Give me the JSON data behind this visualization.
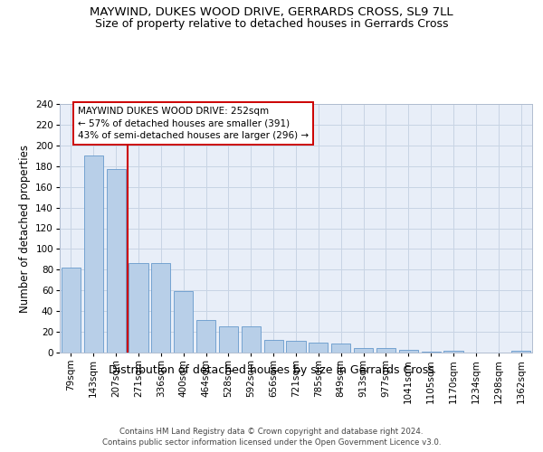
{
  "title": "MAYWIND, DUKES WOOD DRIVE, GERRARDS CROSS, SL9 7LL",
  "subtitle": "Size of property relative to detached houses in Gerrards Cross",
  "xlabel": "Distribution of detached houses by size in Gerrards Cross",
  "ylabel": "Number of detached properties",
  "categories": [
    "79sqm",
    "143sqm",
    "207sqm",
    "271sqm",
    "336sqm",
    "400sqm",
    "464sqm",
    "528sqm",
    "592sqm",
    "656sqm",
    "721sqm",
    "785sqm",
    "849sqm",
    "913sqm",
    "977sqm",
    "1041sqm",
    "1105sqm",
    "1170sqm",
    "1234sqm",
    "1298sqm",
    "1362sqm"
  ],
  "values": [
    82,
    190,
    177,
    86,
    86,
    59,
    31,
    25,
    25,
    12,
    11,
    10,
    9,
    4,
    4,
    3,
    1,
    2,
    0,
    0,
    2
  ],
  "bar_color": "#b8cfe8",
  "bar_edge_color": "#6699cc",
  "vline_x": 2.5,
  "vline_color": "#cc0000",
  "annotation_line1": "MAYWIND DUKES WOOD DRIVE: 252sqm",
  "annotation_line2": "← 57% of detached houses are smaller (391)",
  "annotation_line3": "43% of semi-detached houses are larger (296) →",
  "annotation_box_facecolor": "#ffffff",
  "annotation_box_edgecolor": "#cc0000",
  "ylim": [
    0,
    240
  ],
  "yticks": [
    0,
    20,
    40,
    60,
    80,
    100,
    120,
    140,
    160,
    180,
    200,
    220,
    240
  ],
  "grid_color": "#c8d4e4",
  "bg_color": "#e8eef8",
  "footer": "Contains HM Land Registry data © Crown copyright and database right 2024.\nContains public sector information licensed under the Open Government Licence v3.0.",
  "title_fontsize": 9.5,
  "subtitle_fontsize": 9,
  "xlabel_fontsize": 9,
  "ylabel_fontsize": 8.5,
  "tick_fontsize": 7.5,
  "annotation_fontsize": 7.5,
  "footer_fontsize": 6.2
}
